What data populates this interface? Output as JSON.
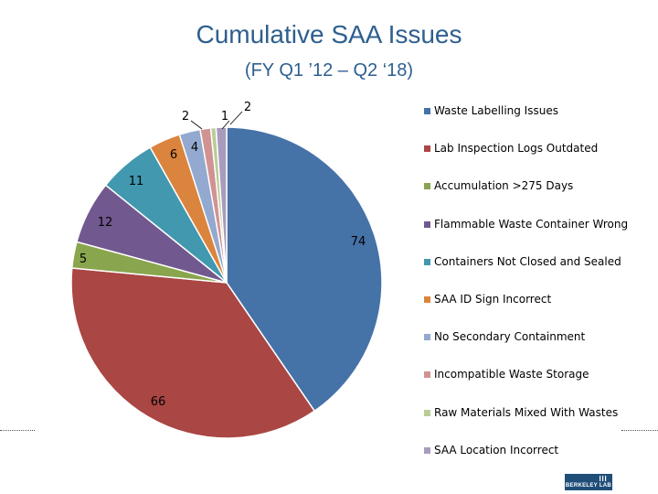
{
  "chart_data": {
    "type": "pie",
    "title": "Cumulative SAA Issues",
    "subtitle": "(FY Q1 ’12 – Q2 ‘18)",
    "legend_position": "right",
    "slices": [
      {
        "label": "Waste Labelling Issues",
        "value": 74,
        "color": "#4572a7"
      },
      {
        "label": "Lab Inspection Logs Outdated",
        "value": 66,
        "color": "#aa4643"
      },
      {
        "label": "Accumulation >275 Days",
        "value": 5,
        "color": "#89a54e"
      },
      {
        "label": "Flammable Waste Container Wrong",
        "value": 12,
        "color": "#71588f"
      },
      {
        "label": "Containers Not Closed and Sealed",
        "value": 11,
        "color": "#4198af"
      },
      {
        "label": "SAA ID Sign Incorrect",
        "value": 6,
        "color": "#db843d"
      },
      {
        "label": "No Secondary Containment",
        "value": 4,
        "color": "#93a9cf"
      },
      {
        "label": "Incompatible Waste Storage",
        "value": 2,
        "color": "#d19392"
      },
      {
        "label": "Raw Materials Mixed With Wastes",
        "value": 1,
        "color": "#b9cd96"
      },
      {
        "label": "SAA Location Incorrect",
        "value": 2,
        "color": "#a99bbd"
      }
    ]
  },
  "footer": {
    "logo_text": "BERKELEY LAB"
  }
}
